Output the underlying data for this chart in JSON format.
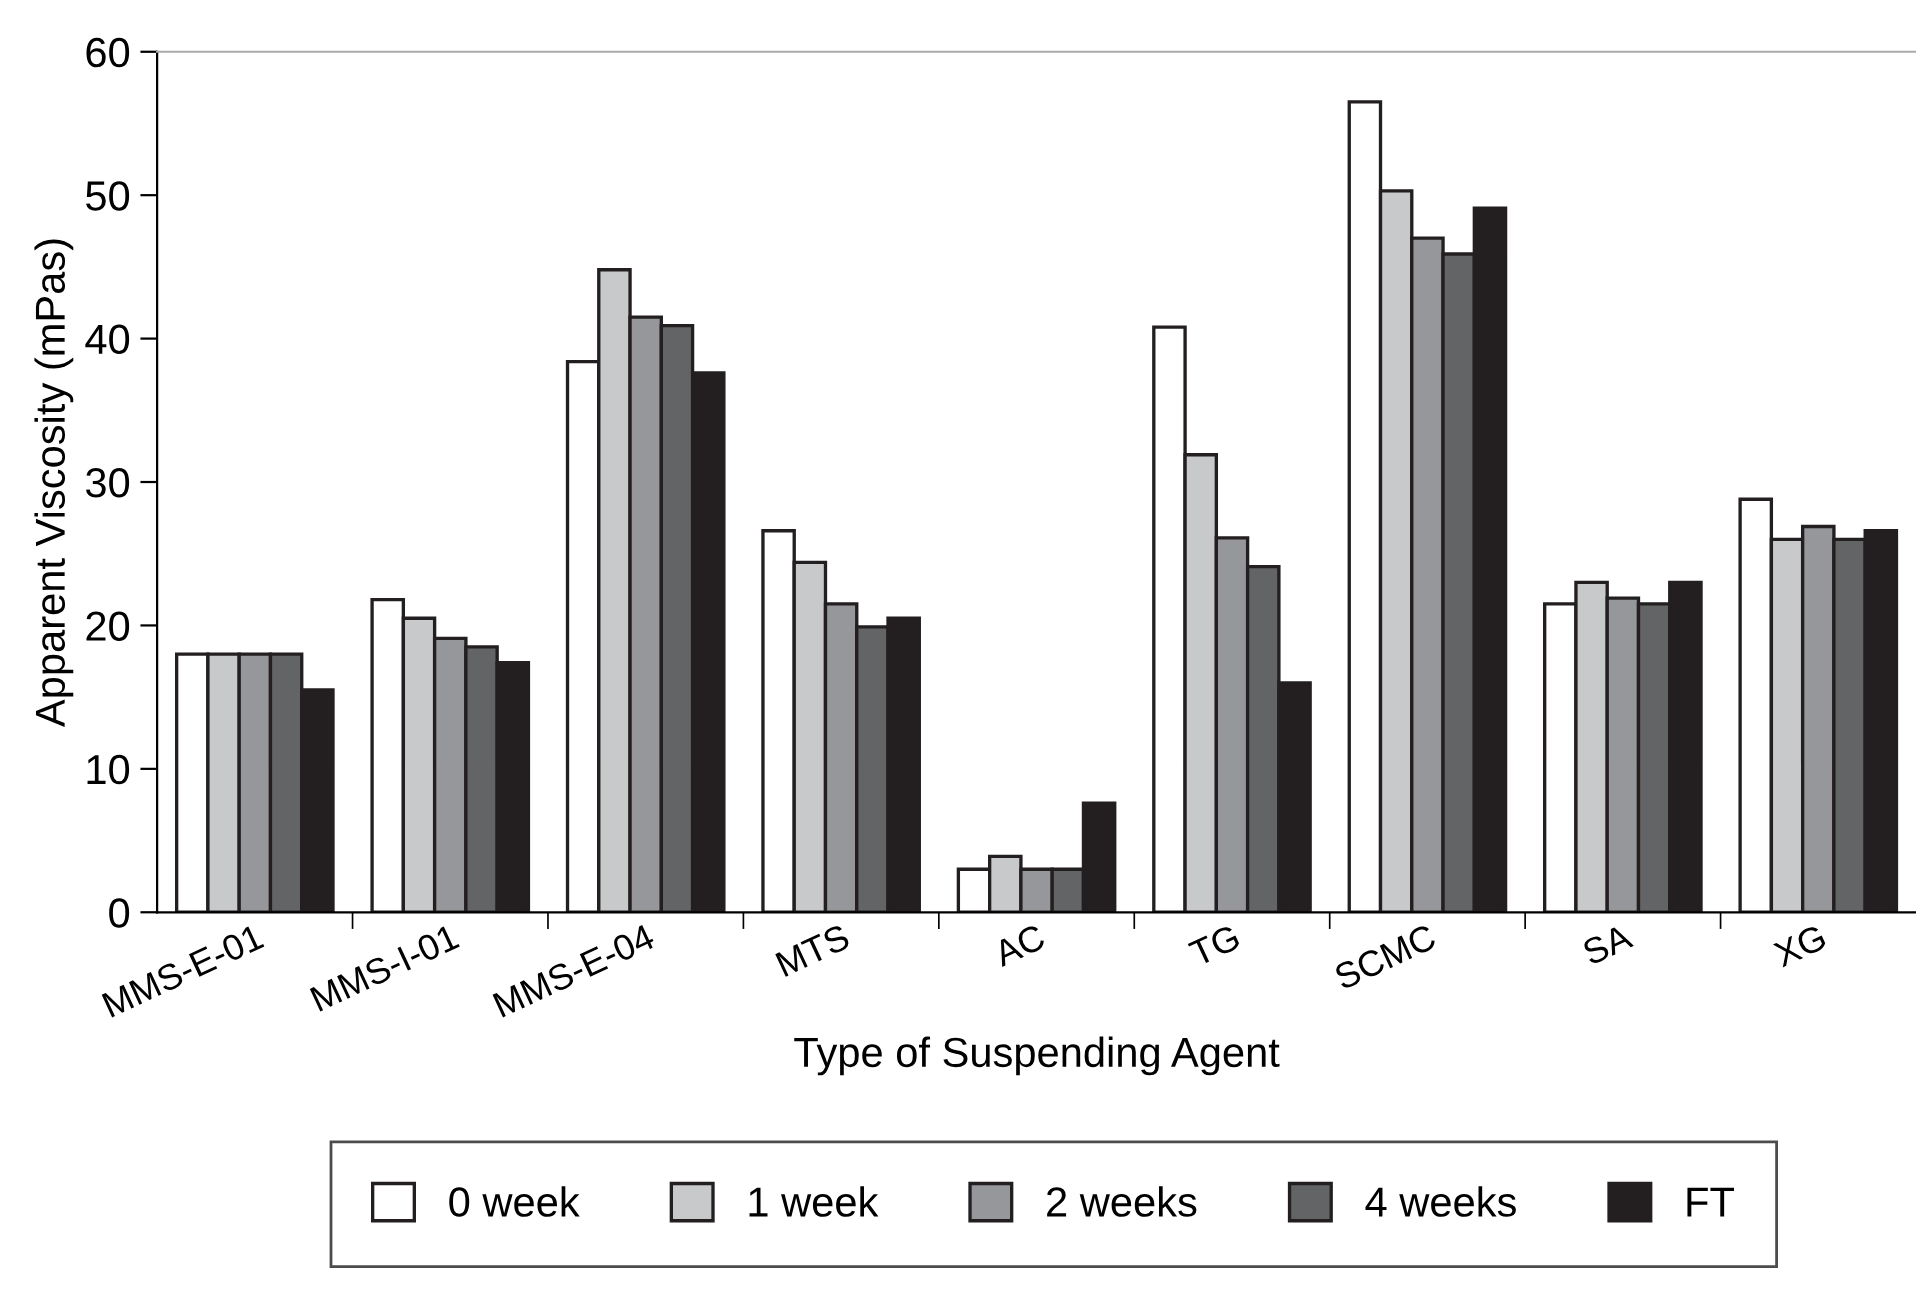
{
  "chart_data": {
    "type": "bar",
    "xlabel": "Type of Suspending Agent",
    "ylabel": "Apparent Viscosity (mPas)",
    "categories": [
      "MMS-E-01",
      "MMS-I-01",
      "MMS-E-04",
      "MTS",
      "AC",
      "TG",
      "SCMC",
      "SA",
      "XG"
    ],
    "series": [
      {
        "name": "0 week",
        "color": "#ffffff",
        "values": [
          18,
          21.8,
          38.4,
          26.6,
          3.0,
          40.8,
          56.5,
          21.5,
          28.8
        ]
      },
      {
        "name": "1 week",
        "color": "#c8c9cb",
        "values": [
          18,
          20.5,
          44.8,
          24.4,
          3.9,
          31.9,
          50.3,
          23.0,
          26.0
        ]
      },
      {
        "name": "2 weeks",
        "color": "#96979b",
        "values": [
          18,
          19.1,
          41.5,
          21.5,
          3.0,
          26.1,
          47.0,
          21.9,
          26.9
        ]
      },
      {
        "name": "4 weeks",
        "color": "#636466",
        "values": [
          18,
          18.5,
          40.9,
          19.9,
          3.0,
          24.1,
          45.9,
          21.5,
          26.0
        ]
      },
      {
        "name": "FT",
        "color": "#231f20",
        "values": [
          15.5,
          17.4,
          37.6,
          20.5,
          7.6,
          16.0,
          49.1,
          23.0,
          26.6
        ]
      }
    ],
    "ylim": [
      0,
      60
    ],
    "yticks": [
      0,
      10,
      20,
      30,
      40,
      50,
      60
    ],
    "grid": false,
    "legend": "bottom"
  }
}
